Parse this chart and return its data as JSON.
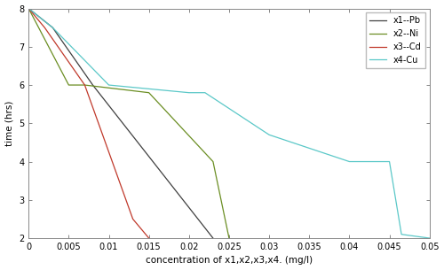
{
  "title": "",
  "xlabel": "concentration of x1,x2,x3,x4. (mg/l)",
  "ylabel": "time (hrs)",
  "xlim": [
    0,
    0.05
  ],
  "ylim": [
    2,
    8
  ],
  "xticks": [
    0,
    0.005,
    0.01,
    0.015,
    0.02,
    0.025,
    0.03,
    0.035,
    0.04,
    0.045,
    0.05
  ],
  "yticks": [
    2,
    3,
    4,
    5,
    6,
    7,
    8
  ],
  "lines": [
    {
      "label": "x1--Pb",
      "color": "#404040",
      "x": [
        0.0,
        0.003,
        0.008,
        0.023
      ],
      "y": [
        8.0,
        7.5,
        6.0,
        2.0
      ]
    },
    {
      "label": "x2--Ni",
      "color": "#6b8e23",
      "x": [
        0.0,
        0.005,
        0.007,
        0.015,
        0.023,
        0.025
      ],
      "y": [
        8.0,
        6.0,
        6.0,
        5.8,
        4.0,
        2.0
      ]
    },
    {
      "label": "x3--Cd",
      "color": "#c0392b",
      "x": [
        0.0,
        0.002,
        0.007,
        0.013,
        0.015
      ],
      "y": [
        8.0,
        7.5,
        6.0,
        2.5,
        2.0
      ]
    },
    {
      "label": "x4-Cu",
      "color": "#5bc8c8",
      "x": [
        0.0,
        0.003,
        0.01,
        0.02,
        0.022,
        0.03,
        0.04,
        0.045,
        0.0465,
        0.05
      ],
      "y": [
        8.0,
        7.5,
        6.0,
        5.8,
        5.8,
        4.7,
        4.0,
        4.0,
        2.1,
        2.0
      ]
    }
  ],
  "legend_loc": "upper right",
  "figsize": [
    5.0,
    3.05
  ],
  "dpi": 100
}
